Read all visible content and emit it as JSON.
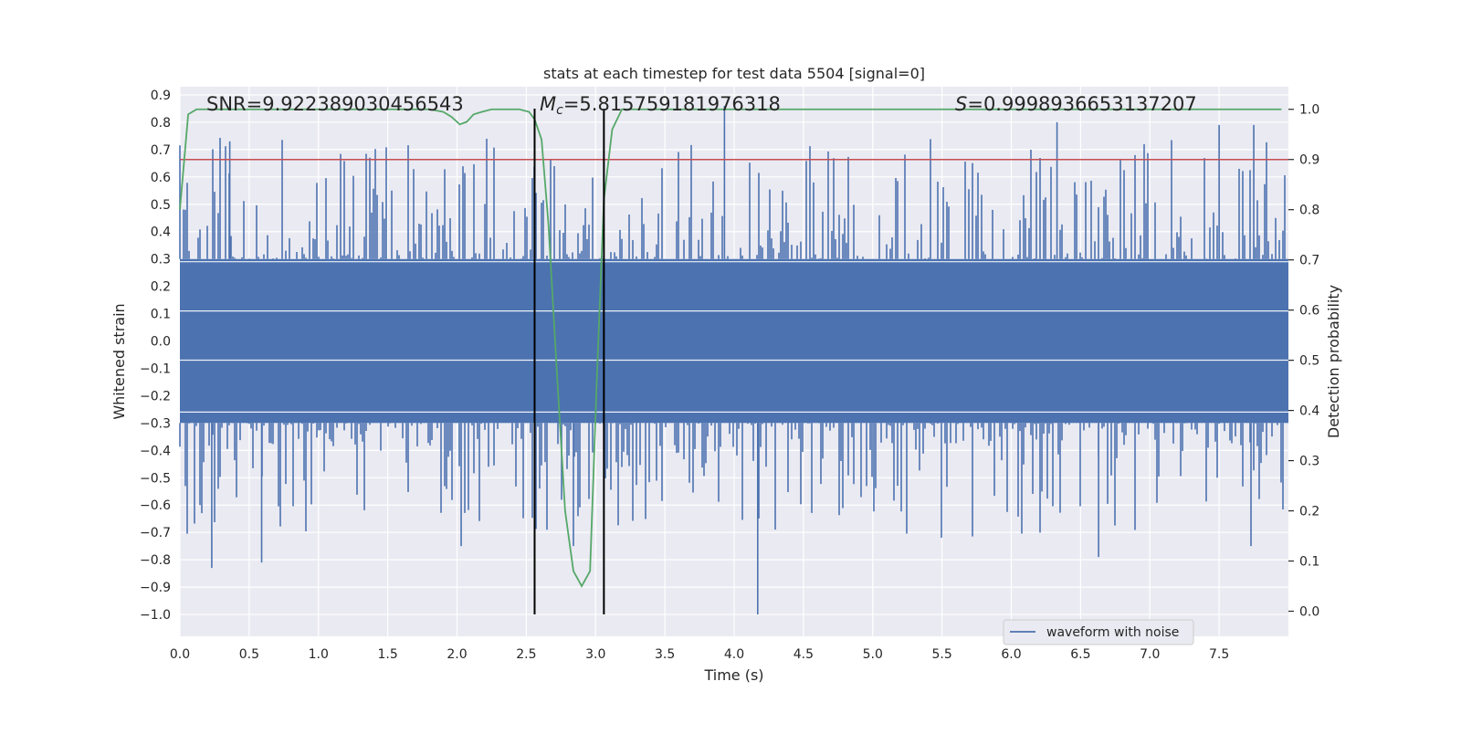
{
  "chart_data": {
    "type": "line",
    "title": "stats at each timestep for test data 5504 [signal=0]",
    "xlabel": "Time (s)",
    "ylabel_left": "Whitened strain",
    "ylabel_right": "Detection probability",
    "xlim": [
      0.0,
      8.0
    ],
    "ylim_left": [
      -1.08,
      0.93
    ],
    "ylim_right": [
      -0.05,
      1.045
    ],
    "xticks": [
      "0.0",
      "0.5",
      "1.0",
      "1.5",
      "2.0",
      "2.5",
      "3.0",
      "3.5",
      "4.0",
      "4.5",
      "5.0",
      "5.5",
      "6.0",
      "6.5",
      "7.0",
      "7.5"
    ],
    "xtick_values": [
      0.0,
      0.5,
      1.0,
      1.5,
      2.0,
      2.5,
      3.0,
      3.5,
      4.0,
      4.5,
      5.0,
      5.5,
      6.0,
      6.5,
      7.0,
      7.5
    ],
    "yticks_left": [
      "0.9",
      "0.8",
      "0.7",
      "0.6",
      "0.5",
      "0.4",
      "0.3",
      "0.2",
      "0.1",
      "0.0",
      "−0.1",
      "−0.2",
      "−0.3",
      "−0.4",
      "−0.5",
      "−0.6",
      "−0.7",
      "−0.8",
      "−0.9",
      "−1.0"
    ],
    "ytick_values_left": [
      0.9,
      0.8,
      0.7,
      0.6,
      0.5,
      0.4,
      0.3,
      0.2,
      0.1,
      0.0,
      -0.1,
      -0.2,
      -0.3,
      -0.4,
      -0.5,
      -0.6,
      -0.7,
      -0.8,
      -0.9,
      -1.0
    ],
    "yticks_right": [
      "1.0",
      "0.9",
      "0.8",
      "0.7",
      "0.6",
      "0.5",
      "0.4",
      "0.3",
      "0.2",
      "0.1",
      "0.0"
    ],
    "ytick_values_right": [
      1.0,
      0.9,
      0.8,
      0.7,
      0.6,
      0.5,
      0.4,
      0.3,
      0.2,
      0.1,
      0.0
    ],
    "annotations": {
      "snr": "SNR=9.922389030456543",
      "mc_symbol": "M",
      "mc_sub": "c",
      "mc_value": "=5.815759181976318",
      "s_symbol": "S",
      "s_value": "=0.9998936653137207"
    },
    "threshold_line": {
      "value": 0.9,
      "axis": "right",
      "color": "#c44e52"
    },
    "vertical_lines_x": [
      2.56,
      3.06
    ],
    "vertical_lines_y_range": [
      -1.0,
      0.85
    ],
    "series": [
      {
        "name": "waveform with noise",
        "color": "#4c72b0",
        "axis": "left",
        "band_envelope": 0.3,
        "notable_peaks": [
          {
            "x": 0.36,
            "y": 0.73
          },
          {
            "x": 3.93,
            "y": 0.86
          },
          {
            "x": 6.33,
            "y": 0.8
          },
          {
            "x": 7.5,
            "y": 0.79
          },
          {
            "x": 7.75,
            "y": 0.79
          },
          {
            "x": 4.17,
            "y": -1.0
          },
          {
            "x": 0.23,
            "y": -0.83
          },
          {
            "x": 0.59,
            "y": -0.81
          },
          {
            "x": 2.03,
            "y": -0.75
          },
          {
            "x": 2.84,
            "y": -0.75
          },
          {
            "x": 6.63,
            "y": -0.79
          },
          {
            "x": 7.73,
            "y": -0.75
          }
        ]
      },
      {
        "name": "detection probability",
        "color": "#55a868",
        "axis": "right",
        "x": [
          0.0,
          0.06,
          0.12,
          0.2,
          0.4,
          0.8,
          1.2,
          1.6,
          1.8,
          1.9,
          1.96,
          2.02,
          2.07,
          2.12,
          2.18,
          2.25,
          2.35,
          2.45,
          2.52,
          2.56,
          2.61,
          2.66,
          2.72,
          2.78,
          2.84,
          2.9,
          2.96,
          3.01,
          3.06,
          3.12,
          3.19,
          3.3,
          4.0,
          5.0,
          6.0,
          7.0,
          7.95
        ],
        "y": [
          0.8,
          0.99,
          1.0,
          1.0,
          1.0,
          1.0,
          1.0,
          1.0,
          1.0,
          0.995,
          0.985,
          0.97,
          0.975,
          0.99,
          0.995,
          1.0,
          1.0,
          1.0,
          0.995,
          0.98,
          0.94,
          0.77,
          0.48,
          0.2,
          0.08,
          0.05,
          0.08,
          0.47,
          0.82,
          0.96,
          1.0,
          1.0,
          1.0,
          1.0,
          1.0,
          1.0,
          1.0
        ]
      }
    ],
    "legend": {
      "placement": "lower-right",
      "label": "waveform with noise"
    }
  },
  "style": {
    "axes_bg": "#eaeaf2",
    "grid": "#ffffff",
    "text": "#262626"
  }
}
